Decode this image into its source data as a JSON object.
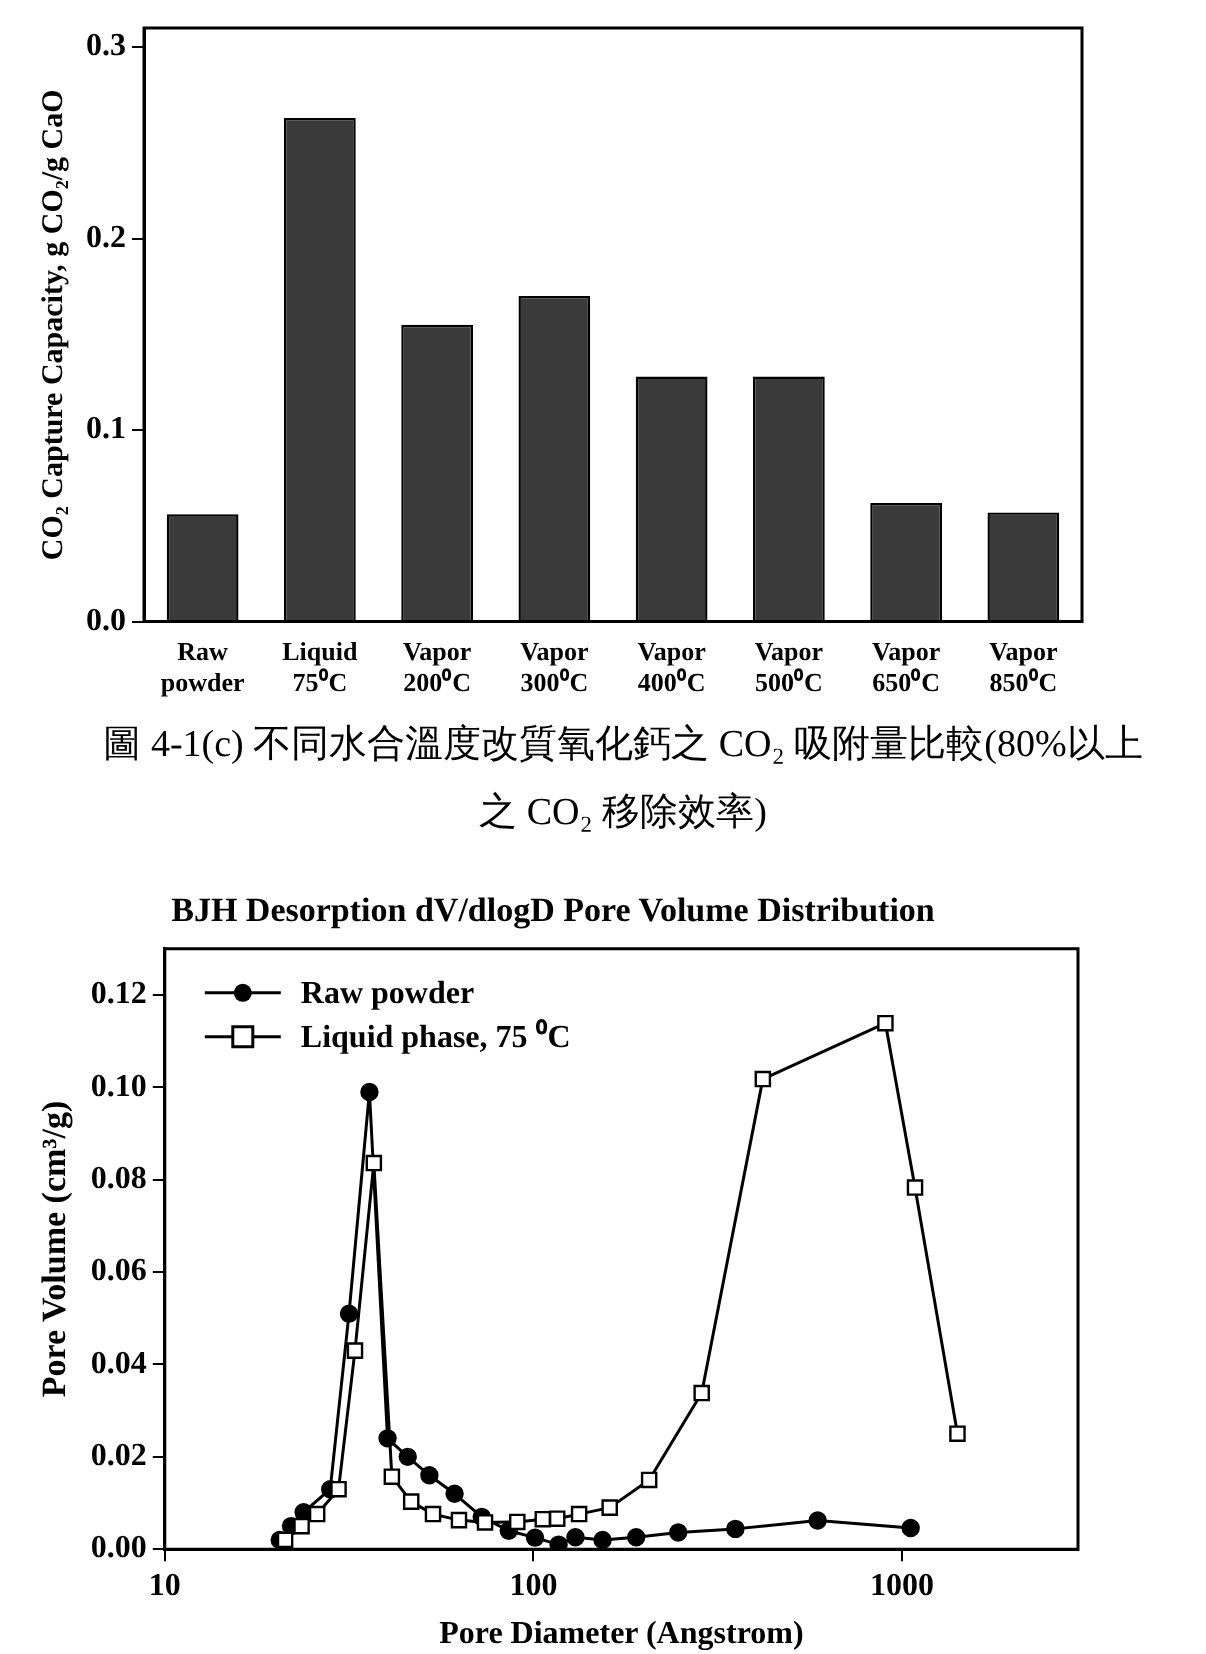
{
  "chart_data": [
    {
      "type": "bar",
      "categories": [
        "Raw powder",
        "Liquid 75⁰C",
        "Vapor 200⁰C",
        "Vapor 300⁰C",
        "Vapor 400⁰C",
        "Vapor 500⁰C",
        "Vapor 650⁰C",
        "Vapor 850⁰C"
      ],
      "values": [
        0.056,
        0.263,
        0.155,
        0.17,
        0.128,
        0.128,
        0.062,
        0.057
      ],
      "color": "#3a3a3a",
      "ylabel": "CO₂ Capture Capacity, g CO₂/g CaO",
      "ylim": [
        0,
        0.31
      ],
      "yticks": [
        {
          "value": 0,
          "label": "0.0"
        },
        0.1,
        0.2,
        0.3
      ],
      "grid": false,
      "legend": false,
      "annotations": [
        "圖 4-1(c) 不同水合溫度改質氧化鈣之 CO₂ 吸附量比較(80%以上之 CO₂ 移除效率)"
      ]
    },
    {
      "type": "line",
      "title": "BJH Desorption dV/dlogD Pore Volume Distribution",
      "xlabel": "Pore Diameter (Angstrom)",
      "ylabel": "Pore Volume (cm³/g)",
      "log": "x",
      "xlim": [
        10,
        3000
      ],
      "xticks": [
        10,
        100,
        1000
      ],
      "ylim": [
        0,
        0.13
      ],
      "yticks": [
        {
          "value": 0,
          "label": "0.00"
        },
        {
          "value": 0.02,
          "label": "0.02"
        },
        {
          "value": 0.04,
          "label": "0.04"
        },
        {
          "value": 0.06,
          "label": "0.06"
        },
        {
          "value": 0.08,
          "label": "0.08"
        },
        {
          "value": 0.1,
          "label": "0.10"
        },
        {
          "value": 0.12,
          "label": "0.12"
        }
      ],
      "grid": false,
      "legend": "top left",
      "line_style": "solid",
      "series": [
        {
          "name": "Raw powder",
          "color": "#000000",
          "marker": "circle",
          "x": [
            20.5,
            22.0,
            23.8,
            28.1,
            31.6,
            35.9,
            40.2,
            45.6,
            52.2,
            61.1,
            72.4,
            85.7,
            101,
            117,
            130,
            154,
            190,
            247,
            353,
            590,
            1055
          ],
          "values": [
            0.002,
            0.005,
            0.008,
            0.013,
            0.051,
            0.099,
            0.024,
            0.02,
            0.016,
            0.012,
            0.007,
            0.004,
            0.0025,
            0.001,
            0.0026,
            0.002,
            0.0026,
            0.0036,
            0.0044,
            0.0062,
            0.0046
          ]
        },
        {
          "name": "Liquid phase, 75 ⁰C",
          "color": "#000000",
          "marker": "square",
          "x": [
            21.2,
            23.5,
            25.9,
            29.6,
            32.8,
            36.9,
            41.3,
            46.6,
            53.4,
            62.8,
            73.9,
            90.4,
            106,
            116,
            133,
            161,
            206,
            286,
            419,
            901,
            1084,
            1413
          ],
          "values": [
            0.002,
            0.005,
            0.0076,
            0.013,
            0.043,
            0.0836,
            0.0157,
            0.0103,
            0.0076,
            0.0063,
            0.0058,
            0.0059,
            0.0065,
            0.0066,
            0.0076,
            0.009,
            0.015,
            0.0338,
            0.1018,
            0.1139,
            0.0783,
            0.025
          ]
        }
      ]
    }
  ]
}
